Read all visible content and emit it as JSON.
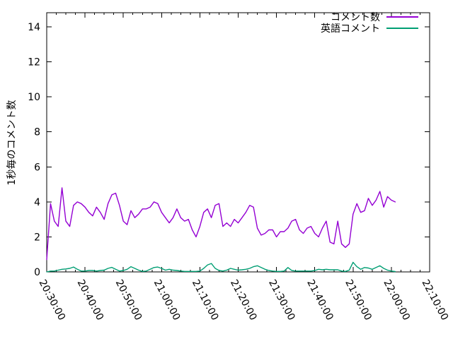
{
  "chart_data": {
    "type": "line",
    "title": "",
    "xlabel": "",
    "ylabel": "1秒毎のコメント数",
    "grid": false,
    "legend_position": "top-right-inside",
    "x_axis": {
      "range_minutes": [
        0,
        100
      ],
      "tick_labels": [
        "20:30:00",
        "20:40:00",
        "20:50:00",
        "21:00:00",
        "21:10:00",
        "21:20:00",
        "21:30:00",
        "21:40:00",
        "21:50:00",
        "22:00:00",
        "22:10:00"
      ],
      "tick_minutes": [
        0,
        10,
        20,
        30,
        40,
        50,
        60,
        70,
        80,
        90,
        100
      ],
      "minor_tick_interval_minutes": 2.5,
      "label_rotation_deg": 62
    },
    "y_axis": {
      "range": [
        0,
        14.8
      ],
      "ticks": [
        0,
        2,
        4,
        6,
        8,
        10,
        12,
        14
      ]
    },
    "x_start_time": "20:30:00",
    "x_sample_interval_minutes": 1,
    "axis_color": "#000000",
    "background_color": "#ffffff",
    "series": [
      {
        "name": "コメント数",
        "slug": "comment-count",
        "color": "#9400d3",
        "values": [
          0.7,
          3.9,
          2.9,
          2.6,
          4.8,
          2.9,
          2.6,
          3.8,
          4.0,
          3.9,
          3.7,
          3.4,
          3.2,
          3.7,
          3.4,
          3.0,
          3.9,
          4.4,
          4.5,
          3.8,
          2.9,
          2.7,
          3.5,
          3.1,
          3.3,
          3.6,
          3.6,
          3.7,
          4.0,
          3.9,
          3.4,
          3.1,
          2.8,
          3.1,
          3.6,
          3.1,
          2.9,
          3.0,
          2.4,
          2.0,
          2.6,
          3.4,
          3.6,
          3.1,
          3.8,
          3.9,
          2.6,
          2.8,
          2.6,
          3.0,
          2.8,
          3.1,
          3.4,
          3.8,
          3.7,
          2.5,
          2.1,
          2.2,
          2.4,
          2.4,
          2.0,
          2.3,
          2.3,
          2.5,
          2.9,
          3.0,
          2.4,
          2.2,
          2.5,
          2.6,
          2.2,
          2.0,
          2.5,
          2.9,
          1.7,
          1.6,
          2.9,
          1.6,
          1.4,
          1.6,
          3.3,
          3.9,
          3.4,
          3.5,
          4.2,
          3.8,
          4.1,
          4.6,
          3.7,
          4.3,
          4.1,
          4.0
        ]
      },
      {
        "name": "英語コメント",
        "slug": "english-comments",
        "color": "#009e73",
        "values": [
          0.0,
          0.05,
          0.05,
          0.1,
          0.15,
          0.17,
          0.2,
          0.28,
          0.15,
          0.05,
          0.05,
          0.08,
          0.08,
          0.05,
          0.08,
          0.1,
          0.2,
          0.26,
          0.15,
          0.05,
          0.08,
          0.15,
          0.3,
          0.2,
          0.1,
          0.03,
          0.05,
          0.15,
          0.25,
          0.28,
          0.2,
          0.1,
          0.15,
          0.1,
          0.08,
          0.05,
          0.03,
          0.03,
          0.03,
          0.03,
          0.05,
          0.2,
          0.4,
          0.48,
          0.2,
          0.08,
          0.05,
          0.1,
          0.2,
          0.15,
          0.1,
          0.12,
          0.15,
          0.2,
          0.3,
          0.35,
          0.25,
          0.15,
          0.08,
          0.05,
          0.03,
          0.03,
          0.05,
          0.25,
          0.08,
          0.05,
          0.05,
          0.05,
          0.05,
          0.05,
          0.08,
          0.15,
          0.12,
          0.15,
          0.12,
          0.12,
          0.12,
          0.05,
          0.03,
          0.1,
          0.55,
          0.3,
          0.15,
          0.25,
          0.22,
          0.15,
          0.25,
          0.35,
          0.2,
          0.1,
          0.05,
          0.02
        ]
      }
    ]
  }
}
